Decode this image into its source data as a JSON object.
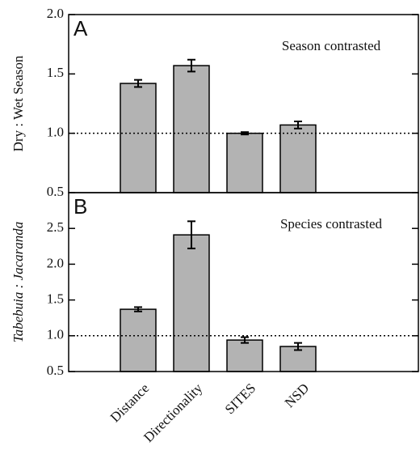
{
  "chart_data": [
    {
      "type": "bar",
      "panel_label": "A",
      "annotation": "Season contrasted",
      "ylabel": "Dry : Wet Season",
      "values": [
        1.42,
        1.57,
        1.0,
        1.07
      ],
      "errors": [
        0.03,
        0.05,
        0.01,
        0.03
      ],
      "color": "#b3b3b3",
      "reference_line": 1.0,
      "ylim": [
        0.5,
        2.0
      ],
      "yticks": [
        {
          "value": 0.5,
          "label": "0.5"
        },
        {
          "value": 1.0,
          "label": "1.0"
        },
        {
          "value": 1.5,
          "label": "1.5"
        },
        {
          "value": 2.0,
          "label": "2.0"
        }
      ]
    },
    {
      "type": "bar",
      "panel_label": "B",
      "annotation": "Species contrasted",
      "ylabel": "Tabebuia : Jacaranda",
      "categories": [
        "Distance",
        "Directionality",
        "SITES",
        "NSD"
      ],
      "values": [
        1.37,
        2.41,
        0.94,
        0.85
      ],
      "errors": [
        0.03,
        0.19,
        0.04,
        0.05
      ],
      "color": "#b3b3b3",
      "reference_line": 1.0,
      "ylim": [
        0.5,
        3.0
      ],
      "yticks": [
        {
          "value": 0.5,
          "label": "0.5"
        },
        {
          "value": 1.0,
          "label": "1.0"
        },
        {
          "value": 1.5,
          "label": "1.5"
        },
        {
          "value": 2.0,
          "label": "2.0"
        },
        {
          "value": 2.5,
          "label": "2.5"
        }
      ]
    }
  ]
}
